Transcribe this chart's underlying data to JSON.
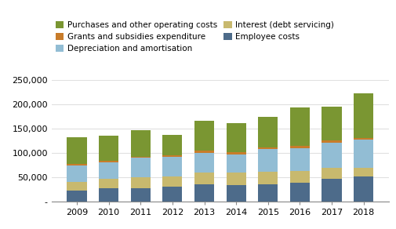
{
  "years": [
    "2009",
    "2010",
    "2011",
    "2012",
    "2013",
    "2014",
    "2015",
    "2016",
    "2017",
    "2018"
  ],
  "employee_costs": [
    22000,
    27000,
    28000,
    30000,
    35000,
    34000,
    36000,
    38000,
    47000,
    52000
  ],
  "interest": [
    18000,
    20000,
    22000,
    22000,
    25000,
    25000,
    26000,
    25000,
    22000,
    18000
  ],
  "depreciation": [
    35000,
    33000,
    40000,
    40000,
    40000,
    38000,
    46000,
    46000,
    52000,
    57000
  ],
  "grants": [
    2000,
    4000,
    2000,
    4000,
    5000,
    5000,
    4000,
    6000,
    5000,
    4000
  ],
  "purchases": [
    55000,
    52000,
    55000,
    42000,
    62000,
    60000,
    63000,
    78000,
    70000,
    92000
  ],
  "colors": {
    "employee_costs": "#4d6b8a",
    "interest": "#c8b96e",
    "depreciation": "#92bdd4",
    "grants": "#c87c2a",
    "purchases": "#7a9632"
  },
  "ylim": [
    0,
    250000
  ],
  "yticks": [
    0,
    50000,
    100000,
    150000,
    200000,
    250000
  ],
  "ytick_labels": [
    "-",
    "50,000",
    "100,000",
    "150,000",
    "200,000",
    "250,000"
  ],
  "background_color": "#ffffff",
  "plot_bg": "#ffffff",
  "grid_color": "#e0e0e0"
}
